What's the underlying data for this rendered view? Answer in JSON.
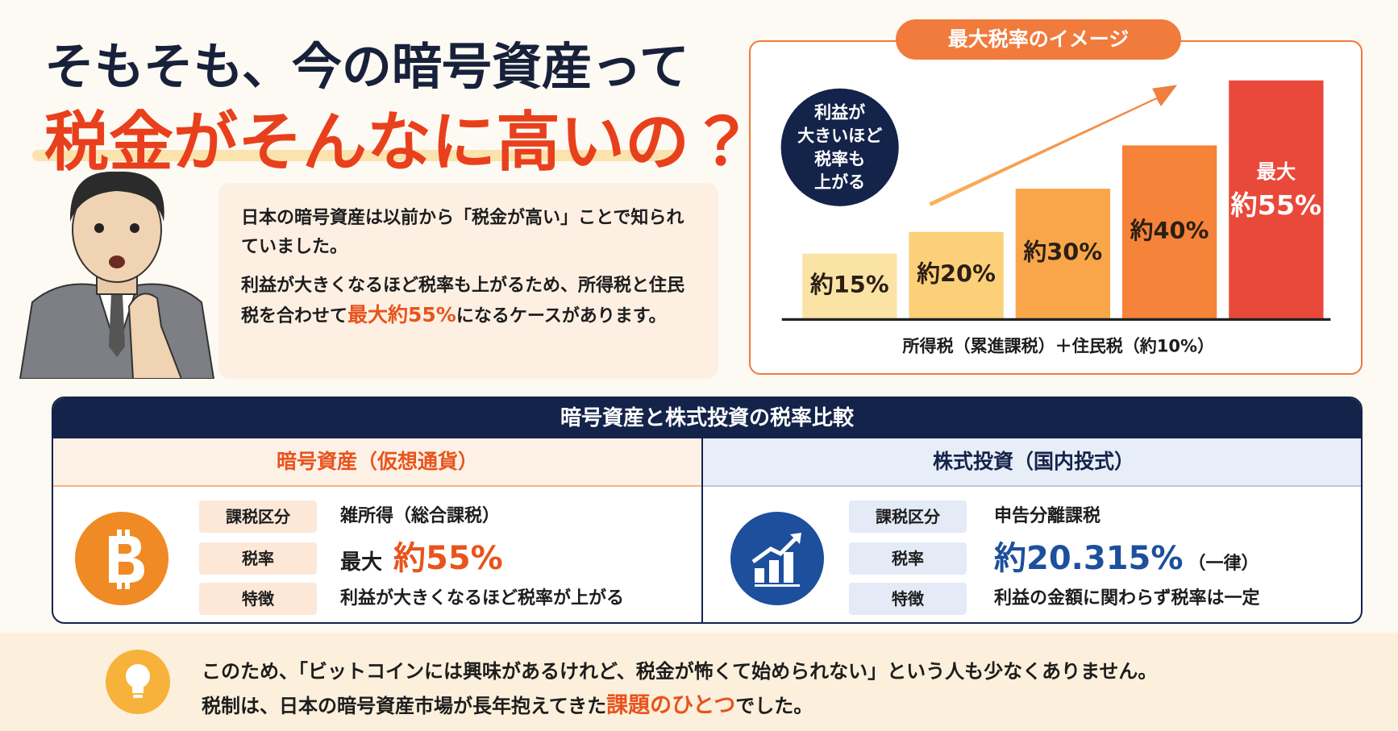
{
  "title": {
    "line1": "そもそも、今の暗号資産って",
    "line2": "税金がそんなに高いの？"
  },
  "intro": {
    "p1": "日本の暗号資産は以前から「税金が高い」ことで知られていました。",
    "p2_before": "利益が大きくなるほど税率も上がるため、所得税と住民税を合わせて",
    "p2_highlight": "最大約55%",
    "p2_after": "になるケースがあります。"
  },
  "chart_data": {
    "type": "bar",
    "title": "最大税率のイメージ",
    "annotation": [
      "利益が",
      "大きいほど",
      "税率も",
      "上がる"
    ],
    "x_label": "所得税（累進課税）＋住民税（約10%）",
    "categories": [
      null,
      null,
      null,
      null,
      null
    ],
    "values": [
      15,
      20,
      30,
      40,
      55
    ],
    "value_labels": [
      "約15%",
      "約20%",
      "約30%",
      "約40%",
      "約55%"
    ],
    "max_label": "最大",
    "colors": [
      "#fbe3a6",
      "#fbd078",
      "#f9a64b",
      "#f6833a",
      "#e9493a"
    ],
    "ylim": [
      0,
      55
    ]
  },
  "comparison": {
    "title": "暗号資産と株式投資の税率比較",
    "crypto": {
      "heading": "暗号資産（仮想通貨）",
      "rows": [
        {
          "label": "課税区分",
          "value": "雑所得（総合課税）"
        },
        {
          "label": "税率",
          "prefix": "最大",
          "rate": "約55%"
        },
        {
          "label": "特徴",
          "value": "利益が大きくなるほど税率が上がる"
        }
      ]
    },
    "stock": {
      "heading": "株式投資（国内投式）",
      "rows": [
        {
          "label": "課税区分",
          "value": "申告分離課税"
        },
        {
          "label": "税率",
          "rate": "約20.315%",
          "suffix": "（一律）"
        },
        {
          "label": "特徴",
          "value": "利益の金額に関わらず税率は一定"
        }
      ]
    }
  },
  "footer": {
    "line1": "このため、「ビットコインには興味があるけれど、税金が怖くて始められない」という人も少なくありません。",
    "line2_before": "税制は、日本の暗号資産市場が長年抱えてきた",
    "line2_highlight": "課題のひとつ",
    "line2_after": "でした。"
  }
}
